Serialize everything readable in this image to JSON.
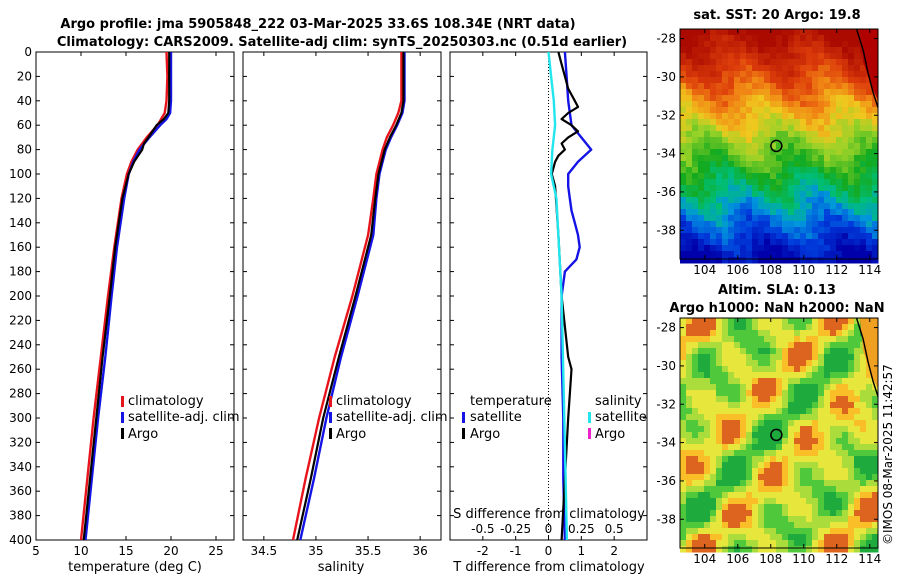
{
  "title": {
    "line1": "Argo profile: jma 5905848_222 03-Mar-2025 33.6S 108.34E (NRT data)",
    "line2": "Climatology: CARS2009. Satellite-adj clim: synTS_20250303.nc (0.51d earlier)"
  },
  "colors": {
    "climatology": "#e8141b",
    "satellite": "#1414e6",
    "argo": "#000000",
    "sal_satellite": "#22e6ee",
    "sal_argo": "#ee22cc"
  },
  "chart_data": [
    {
      "type": "line",
      "name": "temperature-profile",
      "xlabel": "temperature (deg C)",
      "ylabel": "",
      "xlim": [
        5,
        27
      ],
      "ylim": [
        400,
        0
      ],
      "x_ticks": [
        "5",
        "10",
        "15",
        "20",
        "25"
      ],
      "y_ticks": [
        "0",
        "20",
        "40",
        "60",
        "80",
        "100",
        "120",
        "140",
        "160",
        "180",
        "200",
        "220",
        "240",
        "260",
        "280",
        "300",
        "320",
        "340",
        "360",
        "380",
        "400"
      ],
      "legend": [
        "climatology",
        "satellite-adj. clim",
        "Argo"
      ],
      "series": [
        {
          "name": "climatology",
          "depth": [
            0,
            20,
            40,
            50,
            60,
            70,
            80,
            90,
            100,
            120,
            160,
            200,
            250,
            300,
            350,
            400
          ],
          "values": [
            19.5,
            19.6,
            19.5,
            19.3,
            18.5,
            17.3,
            16.3,
            15.6,
            15.1,
            14.5,
            13.7,
            13.0,
            12.2,
            11.4,
            10.7,
            10.0
          ]
        },
        {
          "name": "satellite-adj. clim",
          "depth": [
            0,
            20,
            40,
            50,
            55,
            60,
            70,
            80,
            90,
            100,
            120,
            160,
            200,
            250,
            300,
            350,
            400
          ],
          "values": [
            20.0,
            20.0,
            20.0,
            19.9,
            19.5,
            18.8,
            17.6,
            16.5,
            15.8,
            15.3,
            14.8,
            14.0,
            13.4,
            12.7,
            11.9,
            11.2,
            10.5
          ]
        },
        {
          "name": "Argo",
          "depth": [
            0,
            20,
            40,
            50,
            55,
            60,
            70,
            75,
            80,
            90,
            100,
            120,
            160,
            200,
            250,
            300,
            350,
            400
          ],
          "values": [
            19.8,
            19.8,
            19.8,
            19.7,
            19.2,
            18.4,
            17.5,
            17.0,
            16.8,
            15.9,
            15.3,
            14.6,
            13.8,
            13.2,
            12.4,
            11.7,
            11.0,
            10.3
          ]
        }
      ]
    },
    {
      "type": "line",
      "name": "salinity-profile",
      "xlabel": "salinity",
      "ylabel": "",
      "xlim": [
        34.3,
        36.2
      ],
      "ylim": [
        400,
        0
      ],
      "x_ticks": [
        "34.5",
        "35",
        "35.5",
        "36"
      ],
      "legend": [
        "climatology",
        "satellite-adj. clim",
        "Argo"
      ],
      "series": [
        {
          "name": "climatology",
          "depth": [
            0,
            20,
            40,
            50,
            60,
            70,
            80,
            90,
            100,
            120,
            150,
            200,
            250,
            300,
            350,
            400
          ],
          "values": [
            35.82,
            35.82,
            35.82,
            35.79,
            35.74,
            35.68,
            35.64,
            35.61,
            35.58,
            35.55,
            35.5,
            35.35,
            35.18,
            35.03,
            34.9,
            34.78
          ]
        },
        {
          "name": "satellite-adj. clim",
          "depth": [
            0,
            20,
            40,
            50,
            60,
            70,
            80,
            90,
            100,
            120,
            150,
            200,
            250,
            300,
            350,
            400
          ],
          "values": [
            35.85,
            35.85,
            35.85,
            35.83,
            35.78,
            35.72,
            35.67,
            35.64,
            35.61,
            35.58,
            35.55,
            35.4,
            35.24,
            35.1,
            34.98,
            34.85
          ]
        },
        {
          "name": "Argo",
          "depth": [
            0,
            20,
            40,
            50,
            60,
            70,
            80,
            90,
            100,
            120,
            150,
            200,
            250,
            300,
            350,
            400
          ],
          "values": [
            35.84,
            35.84,
            35.84,
            35.82,
            35.77,
            35.71,
            35.66,
            35.63,
            35.6,
            35.57,
            35.53,
            35.38,
            35.22,
            35.07,
            34.95,
            34.82
          ]
        }
      ]
    },
    {
      "type": "line",
      "name": "difference-profile",
      "xlabel": "T difference from climatology",
      "xlabel_top": "S difference from climatology",
      "xlim": [
        -3,
        3
      ],
      "ylim": [
        400,
        0
      ],
      "x_ticks": [
        "-2",
        "-1",
        "0",
        "1",
        "2"
      ],
      "s_ticks": [
        "-0.5",
        "-0.25",
        "0",
        "0.25",
        "0.5"
      ],
      "legend_temperature": [
        "temperature",
        "satellite",
        "Argo"
      ],
      "legend_salinity": [
        "salinity",
        "satellite",
        "Argo"
      ],
      "series": [
        {
          "name": "temperature satellite",
          "depth": [
            0,
            20,
            40,
            60,
            70,
            80,
            90,
            100,
            110,
            120,
            130,
            140,
            150,
            160,
            170,
            180,
            200,
            250,
            300,
            350,
            400
          ],
          "values": [
            0.5,
            0.55,
            0.6,
            0.7,
            1.0,
            1.3,
            0.9,
            0.6,
            0.6,
            0.65,
            0.7,
            0.8,
            0.9,
            0.95,
            0.85,
            0.5,
            0.4,
            0.4,
            0.45,
            0.45,
            0.5
          ]
        },
        {
          "name": "temperature Argo",
          "depth": [
            0,
            10,
            20,
            30,
            40,
            45,
            50,
            55,
            60,
            65,
            70,
            75,
            80,
            85,
            90,
            100,
            110,
            150,
            200,
            250,
            260,
            300,
            350,
            400
          ],
          "values": [
            0.3,
            0.4,
            0.5,
            0.6,
            0.8,
            0.9,
            0.6,
            0.4,
            0.7,
            0.9,
            0.6,
            0.4,
            0.5,
            0.3,
            0.2,
            0.1,
            0.2,
            0.3,
            0.4,
            0.6,
            0.7,
            0.6,
            0.5,
            0.4
          ]
        },
        {
          "name": "salinity satellite",
          "depth": [
            0,
            20,
            40,
            60,
            80,
            100,
            120,
            200,
            300,
            400
          ],
          "values": [
            0.0,
            0.02,
            0.04,
            0.05,
            0.03,
            0.02,
            0.06,
            0.1,
            0.12,
            0.14
          ]
        },
        {
          "name": "salinity Argo",
          "depth": [],
          "values": []
        }
      ]
    },
    {
      "type": "heatmap",
      "name": "sst-map",
      "title": "sat. SST: 20 Argo: 19.8",
      "x_ticks": [
        "104",
        "106",
        "108",
        "110",
        "112",
        "114"
      ],
      "y_ticks": [
        "-28",
        "-30",
        "-32",
        "-34",
        "-36",
        "-38"
      ],
      "xlim": [
        102.5,
        114.5
      ],
      "ylim": [
        -39.5,
        -27.5
      ],
      "profile_marker": {
        "lon": 108.34,
        "lat": -33.6
      }
    },
    {
      "type": "heatmap",
      "name": "sla-map",
      "title1": "Altim. SLA: 0.13",
      "title2": "Argo h1000: NaN h2000: NaN",
      "x_ticks": [
        "104",
        "106",
        "108",
        "110",
        "112",
        "114"
      ],
      "y_ticks": [
        "-28",
        "-30",
        "-32",
        "-34",
        "-36",
        "-38"
      ],
      "xlim": [
        102.5,
        114.5
      ],
      "ylim": [
        -39.5,
        -27.5
      ],
      "profile_marker": {
        "lon": 108.34,
        "lat": -33.6
      }
    }
  ],
  "legend": {
    "climatology": "climatology",
    "satellite_adj": "satellite-adj. clim",
    "argo": "Argo",
    "temperature": "temperature",
    "salinity": "salinity",
    "satellite": "satellite"
  },
  "watermark": "©IMOS 08-Mar-2025 11:42:57"
}
